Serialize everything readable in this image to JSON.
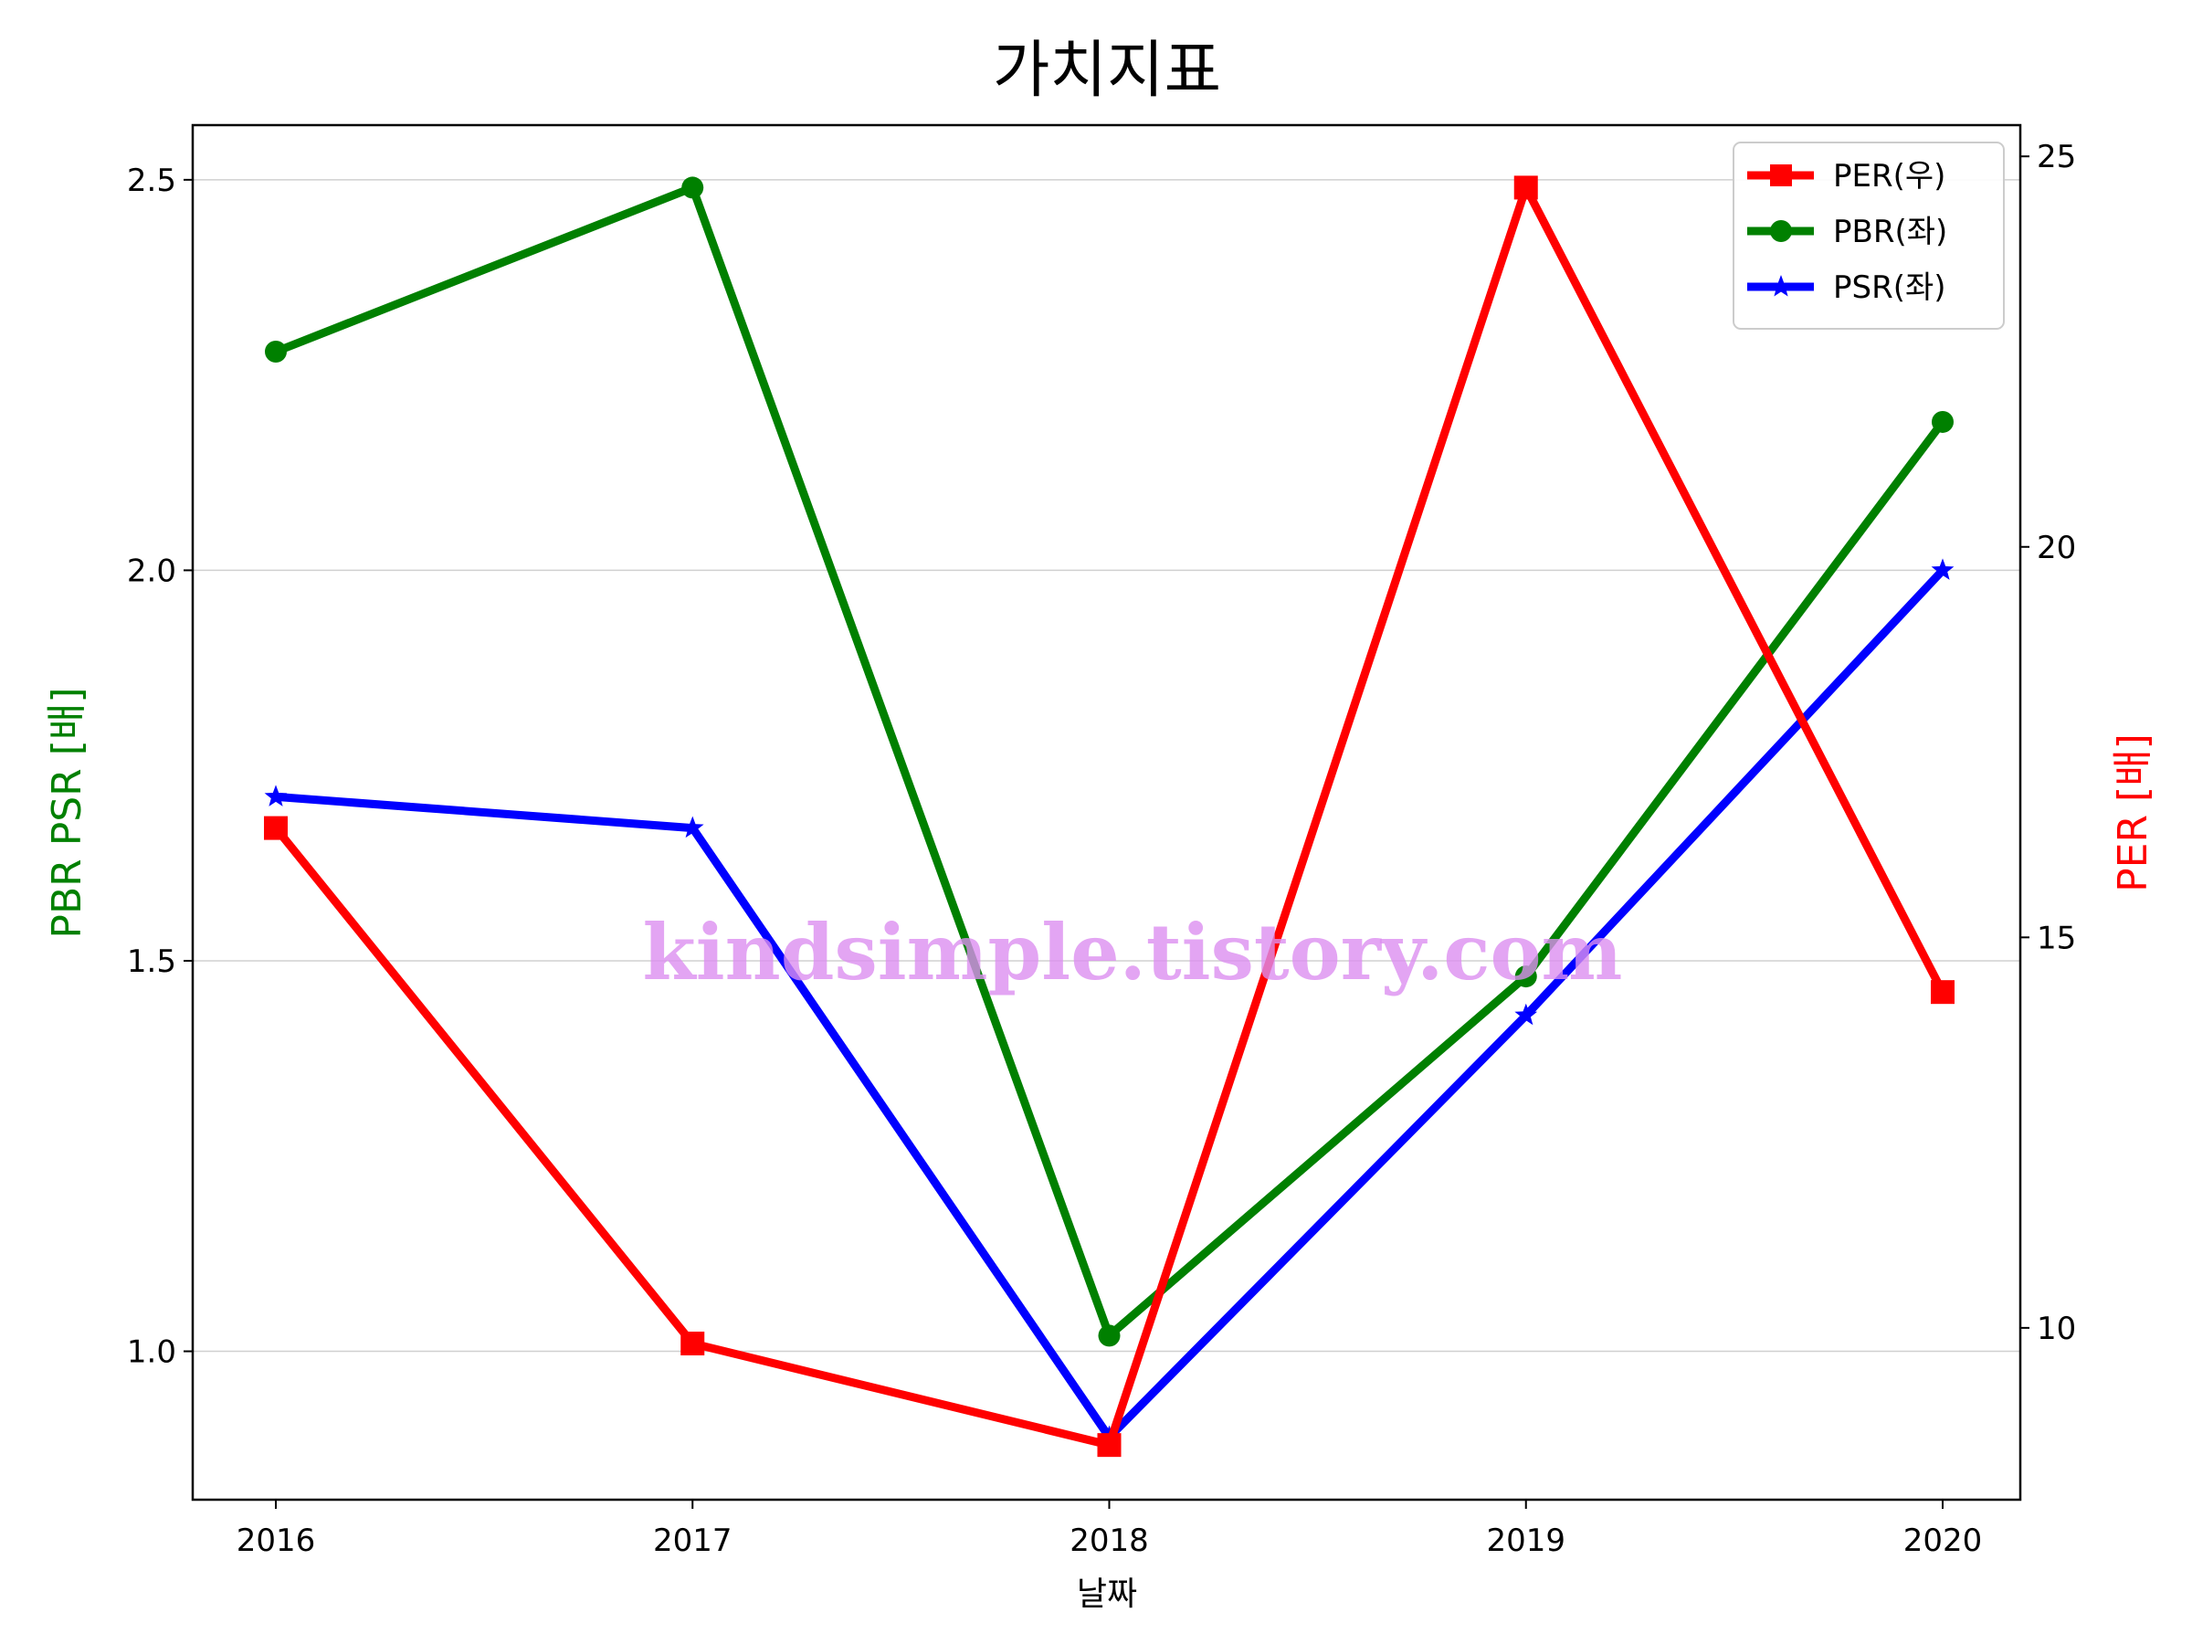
{
  "chart_data": {
    "type": "line",
    "title": "가치지표",
    "xlabel": "날짜",
    "ylabel_left": "PBR PSR [배]",
    "ylabel_right": "PER [배]",
    "categories": [
      "2016",
      "2017",
      "2018",
      "2019",
      "2020"
    ],
    "ylim_left": [
      0.81,
      2.57
    ],
    "ylim_right": [
      7.8,
      25.4
    ],
    "yticks_left": [
      "1.0",
      "1.5",
      "2.0",
      "2.5"
    ],
    "yticks_right": [
      "10",
      "15",
      "20",
      "25"
    ],
    "grid": true,
    "legend_position": "top-right",
    "series": [
      {
        "name": "PER(우)",
        "axis": "right",
        "color": "#ff0000",
        "marker": "square",
        "values": [
          16.4,
          9.8,
          8.5,
          24.6,
          14.3
        ]
      },
      {
        "name": "PBR(좌)",
        "axis": "left",
        "color": "#008000",
        "marker": "circle",
        "values": [
          2.28,
          2.49,
          1.02,
          1.48,
          2.19
        ]
      },
      {
        "name": "PSR(좌)",
        "axis": "left",
        "color": "#0000ff",
        "marker": "star",
        "values": [
          1.71,
          1.67,
          0.89,
          1.43,
          2.0
        ]
      }
    ]
  },
  "watermark": "kindsimple.tistory.com"
}
